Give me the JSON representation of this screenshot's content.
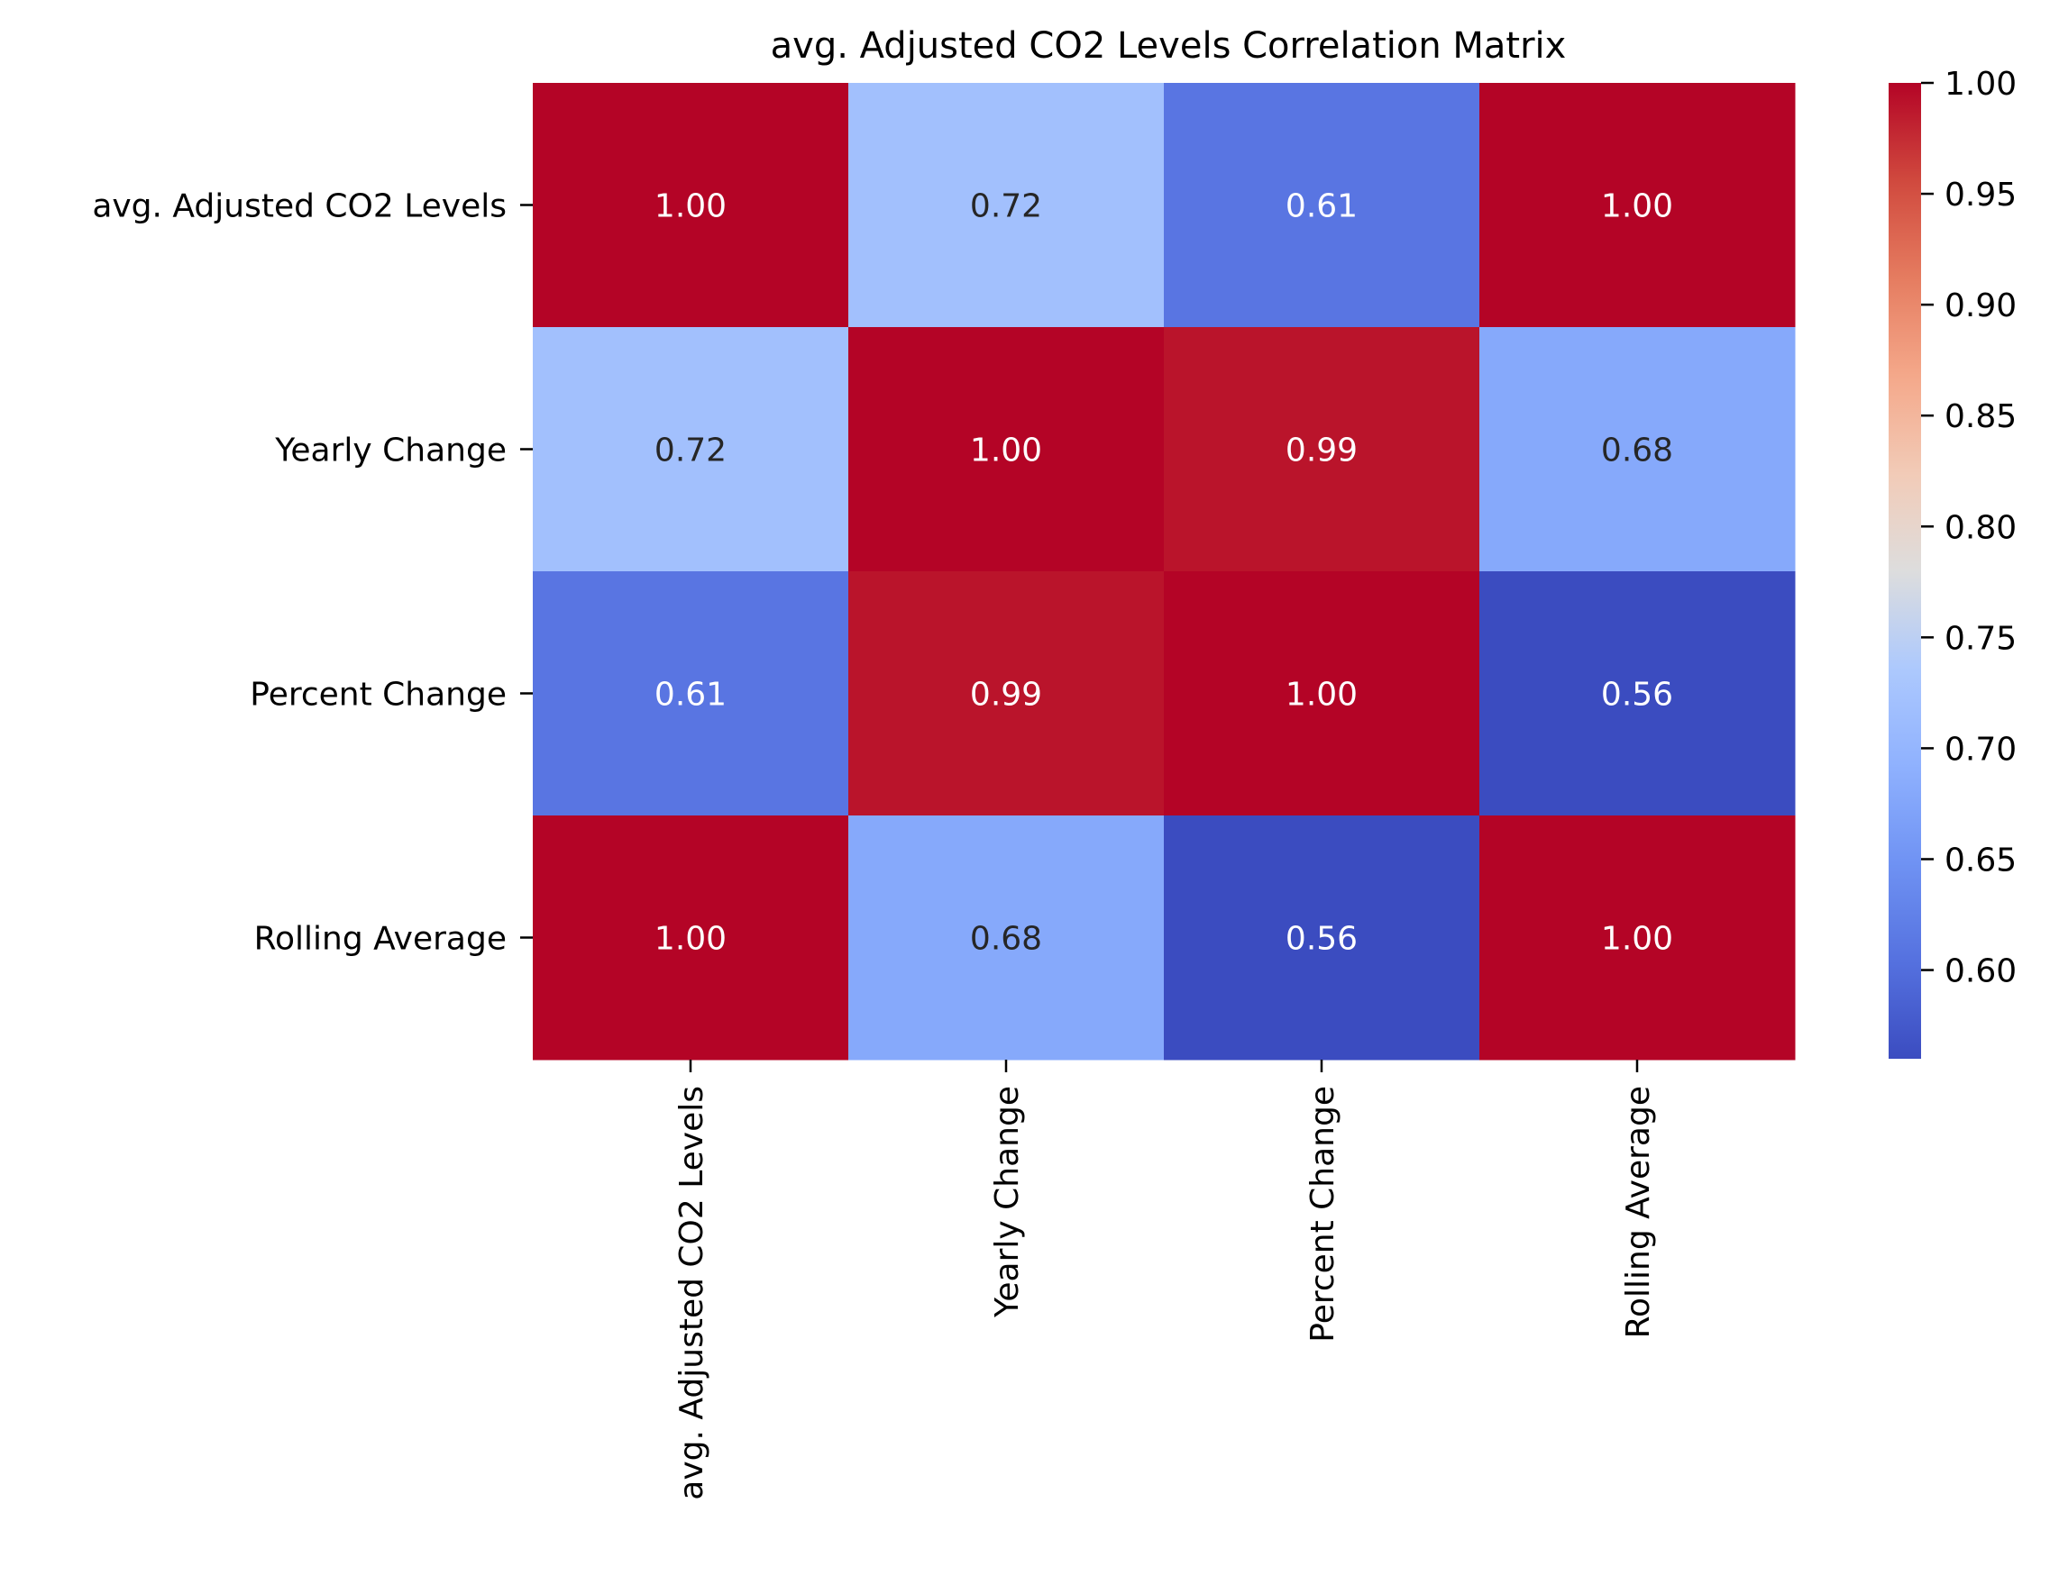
{
  "chart_data": {
    "type": "heatmap",
    "title": "avg. Adjusted CO2 Levels Correlation Matrix",
    "xlabel": "",
    "ylabel": "",
    "row_labels": [
      "avg. Adjusted CO2 Levels",
      "Yearly Change",
      "Percent Change",
      "Rolling Average"
    ],
    "col_labels": [
      "avg. Adjusted CO2 Levels",
      "Yearly Change",
      "Percent Change",
      "Rolling Average"
    ],
    "values": [
      [
        1.0,
        0.72,
        0.61,
        1.0
      ],
      [
        0.72,
        1.0,
        0.99,
        0.68
      ],
      [
        0.61,
        0.99,
        1.0,
        0.56
      ],
      [
        1.0,
        0.68,
        0.56,
        1.0
      ]
    ],
    "annotations": [
      [
        "1.00",
        "0.72",
        "0.61",
        "1.00"
      ],
      [
        "0.72",
        "1.00",
        "0.99",
        "0.68"
      ],
      [
        "0.61",
        "0.99",
        "1.00",
        "0.56"
      ],
      [
        "1.00",
        "0.68",
        "0.56",
        "1.00"
      ]
    ],
    "colormap": "coolwarm",
    "vmin": 0.56,
    "vmax": 1.0,
    "colorbar": {
      "ticks": [
        0.6,
        0.65,
        0.7,
        0.75,
        0.8,
        0.85,
        0.9,
        0.95,
        1.0
      ],
      "tick_labels": [
        "0.60",
        "0.65",
        "0.70",
        "0.75",
        "0.80",
        "0.85",
        "0.90",
        "0.95",
        "1.00"
      ]
    },
    "x_tick_rotation": "vertical",
    "grid": false
  }
}
